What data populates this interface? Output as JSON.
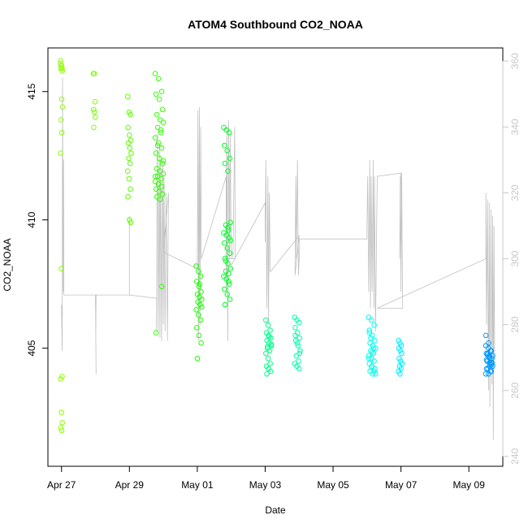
{
  "chart_data": {
    "type": "scatter",
    "title": "ATOM4 Southbound CO2_NOAA",
    "xlabel": "Date",
    "ylabel": "CO2_NOAA",
    "x_ticks": [
      "Apr 27",
      "Apr 29",
      "May 01",
      "May 03",
      "May 05",
      "May 07",
      "May 09"
    ],
    "x_tick_values": [
      0,
      2,
      4,
      6,
      8,
      10,
      12
    ],
    "xlim": [
      -0.4,
      13.0
    ],
    "y_ticks": [
      405,
      410,
      415
    ],
    "ylim": [
      400.4,
      416.7
    ],
    "y2_ticks": [
      240,
      260,
      280,
      300,
      320,
      340,
      360
    ],
    "y2lim": [
      237,
      364
    ],
    "grid": false,
    "legend": "none",
    "colors": {
      "apr27": "#8cff00",
      "apr28": "#7cff00",
      "apr29": "#5eff00",
      "apr30": "#33ff00",
      "may01": "#1aff00",
      "may02": "#00ff22",
      "may03": "#00ff88",
      "may04": "#00ffaa",
      "may06": "#00ffee",
      "may07": "#00eeff",
      "may09": "#0099ff",
      "line": "#c0c0c0"
    },
    "point_series": [
      {
        "key": "apr27",
        "x": 0.0,
        "spread": 0.03,
        "values": [
          416.1,
          416.0,
          415.9,
          416.2,
          416.0,
          415.8,
          415.9,
          414.7,
          414.4,
          413.9,
          413.4,
          412.6,
          408.1,
          403.9,
          403.8,
          402.5,
          402.1,
          401.9,
          401.8
        ]
      },
      {
        "key": "apr28",
        "x": 0.97,
        "spread": 0.03,
        "values": [
          415.7,
          415.7,
          414.6,
          414.3,
          414.2,
          414.0,
          413.6
        ]
      },
      {
        "key": "apr29",
        "x": 2.0,
        "spread": 0.05,
        "values": [
          414.8,
          414.2,
          414.1,
          413.6,
          413.3,
          413.1,
          413.0,
          412.8,
          412.6,
          412.4,
          412.2,
          411.9,
          411.6,
          411.2,
          410.9,
          410.0,
          409.9
        ]
      },
      {
        "key": "apr30",
        "x": 2.88,
        "spread": 0.12,
        "values": [
          415.7,
          415.5,
          415.0,
          414.9,
          414.7,
          414.3,
          414.1,
          413.9,
          413.8,
          413.6,
          413.4,
          413.2,
          413.0,
          412.8,
          412.6,
          412.4,
          412.2,
          412.0,
          411.9,
          411.8,
          411.7,
          411.6,
          411.5,
          411.4,
          411.3,
          411.2,
          411.1,
          411.0,
          410.9,
          410.8,
          412.3,
          412.9,
          413.5,
          411.7,
          411.4,
          407.4,
          405.6
        ]
      },
      {
        "key": "may01",
        "x": 4.05,
        "spread": 0.08,
        "values": [
          408.2,
          408.0,
          407.8,
          407.6,
          407.4,
          407.2,
          407.1,
          407.0,
          406.9,
          406.8,
          406.7,
          406.5,
          406.3,
          406.1,
          405.8,
          405.5,
          405.2,
          404.6,
          407.5,
          406.6
        ]
      },
      {
        "key": "may02",
        "x": 4.88,
        "spread": 0.1,
        "values": [
          413.6,
          413.5,
          413.4,
          412.9,
          412.7,
          412.4,
          412.2,
          411.9,
          409.9,
          409.8,
          409.6,
          409.5,
          409.4,
          409.3,
          409.1,
          408.9,
          408.7,
          408.5,
          408.3,
          408.1,
          408.0,
          407.9,
          407.8,
          407.7,
          407.5,
          407.3,
          407.1,
          406.9,
          406.7,
          409.7,
          409.2,
          408.4,
          407.6
        ]
      },
      {
        "key": "may03",
        "x": 6.1,
        "spread": 0.08,
        "values": [
          406.1,
          405.9,
          405.7,
          405.6,
          405.5,
          405.4,
          405.3,
          405.2,
          405.1,
          405.0,
          404.9,
          404.8,
          404.6,
          404.4,
          404.3,
          404.2,
          404.1,
          404.0,
          405.45,
          405.15,
          405.05
        ]
      },
      {
        "key": "may04",
        "x": 6.95,
        "spread": 0.08,
        "values": [
          406.2,
          406.1,
          406.0,
          405.8,
          405.6,
          405.4,
          405.3,
          405.1,
          404.9,
          404.7,
          404.5,
          404.4,
          404.3,
          404.2,
          405.5,
          405.2,
          404.8
        ]
      },
      {
        "key": "may06",
        "x": 9.15,
        "spread": 0.1,
        "values": [
          406.2,
          406.1,
          405.9,
          405.7,
          405.5,
          405.3,
          405.2,
          405.1,
          405.0,
          404.9,
          404.8,
          404.7,
          404.6,
          404.5,
          404.4,
          404.3,
          404.2,
          404.1,
          404.0,
          404.0,
          405.4,
          405.0,
          404.6,
          404.25,
          404.1,
          405.6,
          404.85
        ]
      },
      {
        "key": "may07",
        "x": 9.98,
        "spread": 0.05,
        "values": [
          405.3,
          405.2,
          405.1,
          405.0,
          404.9,
          404.8,
          404.6,
          404.5,
          404.4,
          404.3,
          404.2,
          404.1,
          404.0
        ]
      },
      {
        "key": "may09",
        "x": 12.6,
        "spread": 0.1,
        "values": [
          405.5,
          405.0,
          404.9,
          404.8,
          404.7,
          404.6,
          404.5,
          404.4,
          404.3,
          404.2,
          404.1,
          404.0,
          404.0,
          404.1,
          404.2,
          404.3,
          404.4,
          404.5,
          404.6,
          404.7,
          404.8,
          404.9,
          405.1,
          405.2,
          404.35,
          404.55,
          404.65,
          404.45,
          404.75
        ]
      }
    ],
    "altitude_path": [
      [
        0.0,
        286
      ],
      [
        0.02,
        272
      ],
      [
        0.03,
        355
      ],
      [
        0.05,
        290
      ],
      [
        0.06,
        330
      ],
      [
        0.07,
        289
      ],
      [
        1.0,
        289
      ],
      [
        1.02,
        265
      ],
      [
        1.01,
        276
      ],
      [
        1.02,
        289
      ],
      [
        2.0,
        289
      ],
      [
        2.0,
        313
      ],
      [
        2.0,
        289
      ],
      [
        2.8,
        288
      ],
      [
        2.8,
        278
      ],
      [
        2.82,
        338
      ],
      [
        2.85,
        278
      ],
      [
        2.88,
        335
      ],
      [
        2.9,
        276
      ],
      [
        2.92,
        330
      ],
      [
        2.95,
        275
      ],
      [
        2.98,
        330
      ],
      [
        3.0,
        280
      ],
      [
        3.02,
        325
      ],
      [
        3.05,
        278
      ],
      [
        3.08,
        320
      ],
      [
        3.1,
        300
      ],
      [
        3.12,
        275
      ],
      [
        3.15,
        320
      ],
      [
        3.0,
        302
      ],
      [
        4.0,
        297
      ],
      [
        4.0,
        300
      ],
      [
        4.02,
        345
      ],
      [
        4.04,
        275
      ],
      [
        4.06,
        346
      ],
      [
        4.08,
        280
      ],
      [
        4.1,
        340
      ],
      [
        4.12,
        300
      ],
      [
        4.85,
        325
      ],
      [
        4.85,
        290
      ],
      [
        4.87,
        340
      ],
      [
        4.9,
        275
      ],
      [
        4.92,
        342
      ],
      [
        4.95,
        300
      ],
      [
        4.97,
        338
      ],
      [
        5.0,
        300
      ],
      [
        5.05,
        300
      ],
      [
        5.1,
        340
      ],
      [
        5.12,
        300
      ],
      [
        4.9,
        300
      ],
      [
        5.0,
        298
      ],
      [
        6.0,
        317
      ],
      [
        6.0,
        305
      ],
      [
        6.02,
        330
      ],
      [
        6.05,
        285
      ],
      [
        6.08,
        325
      ],
      [
        6.1,
        280
      ],
      [
        6.12,
        320
      ],
      [
        6.15,
        296
      ],
      [
        7.0,
        307
      ],
      [
        6.88,
        295
      ],
      [
        6.9,
        325
      ],
      [
        6.92,
        300
      ],
      [
        6.95,
        330
      ],
      [
        6.98,
        295
      ],
      [
        7.0,
        300
      ],
      [
        7.0,
        306
      ],
      [
        9.0,
        306
      ],
      [
        9.0,
        310
      ],
      [
        9.02,
        325
      ],
      [
        9.05,
        290
      ],
      [
        9.08,
        330
      ],
      [
        9.1,
        285
      ],
      [
        9.12,
        325
      ],
      [
        9.15,
        290
      ],
      [
        9.18,
        330
      ],
      [
        9.2,
        285
      ],
      [
        9.22,
        325
      ],
      [
        9.25,
        278
      ],
      [
        9.3,
        325
      ],
      [
        10.0,
        326
      ],
      [
        9.96,
        300
      ],
      [
        9.98,
        325
      ],
      [
        10.0,
        290
      ],
      [
        10.02,
        326
      ],
      [
        10.05,
        285
      ],
      [
        9.3,
        285
      ],
      [
        12.5,
        300
      ],
      [
        12.5,
        320
      ],
      [
        12.52,
        280
      ],
      [
        12.55,
        318
      ],
      [
        12.58,
        260
      ],
      [
        12.6,
        317
      ],
      [
        12.62,
        255
      ],
      [
        12.65,
        315
      ],
      [
        12.68,
        262
      ],
      [
        12.7,
        313
      ],
      [
        12.72,
        245
      ],
      [
        12.74,
        310
      ],
      [
        12.76,
        270
      ]
    ]
  }
}
